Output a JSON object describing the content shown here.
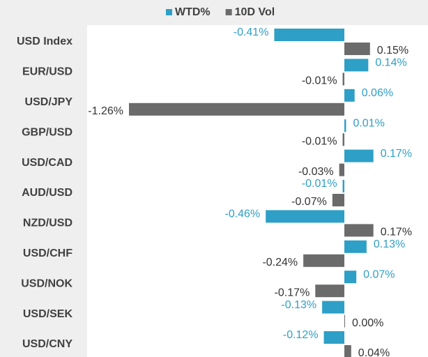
{
  "chart_data": {
    "type": "hbar",
    "categories": [
      "USD Index",
      "EUR/USD",
      "USD/JPY",
      "GBP/USD",
      "USD/CAD",
      "AUD/USD",
      "NZD/USD",
      "USD/CHF",
      "USD/NOK",
      "USD/SEK",
      "USD/CNY"
    ],
    "series": [
      {
        "name": "WTD%",
        "color": "#2e9fc6",
        "values": [
          -0.41,
          0.14,
          0.06,
          0.01,
          0.17,
          -0.01,
          -0.46,
          0.13,
          0.07,
          -0.13,
          -0.12
        ],
        "value_labels": [
          "-0.41%",
          "0.14%",
          "0.06%",
          "0.01%",
          "0.17%",
          "-0.01%",
          "-0.46%",
          "0.13%",
          "0.07%",
          "-0.13%",
          "-0.12%"
        ]
      },
      {
        "name": "10D Vol",
        "color": "#6b6b6b",
        "values": [
          0.15,
          -0.01,
          -1.26,
          -0.01,
          -0.03,
          -0.07,
          0.17,
          -0.24,
          -0.17,
          0.0,
          0.04
        ],
        "value_labels": [
          "0.15%",
          "-0.01%",
          "-1.26%",
          "-0.01%",
          "-0.03%",
          "-0.07%",
          "0.17%",
          "-0.24%",
          "-0.17%",
          "0.00%",
          "0.04%"
        ]
      }
    ],
    "legend": "top"
  }
}
